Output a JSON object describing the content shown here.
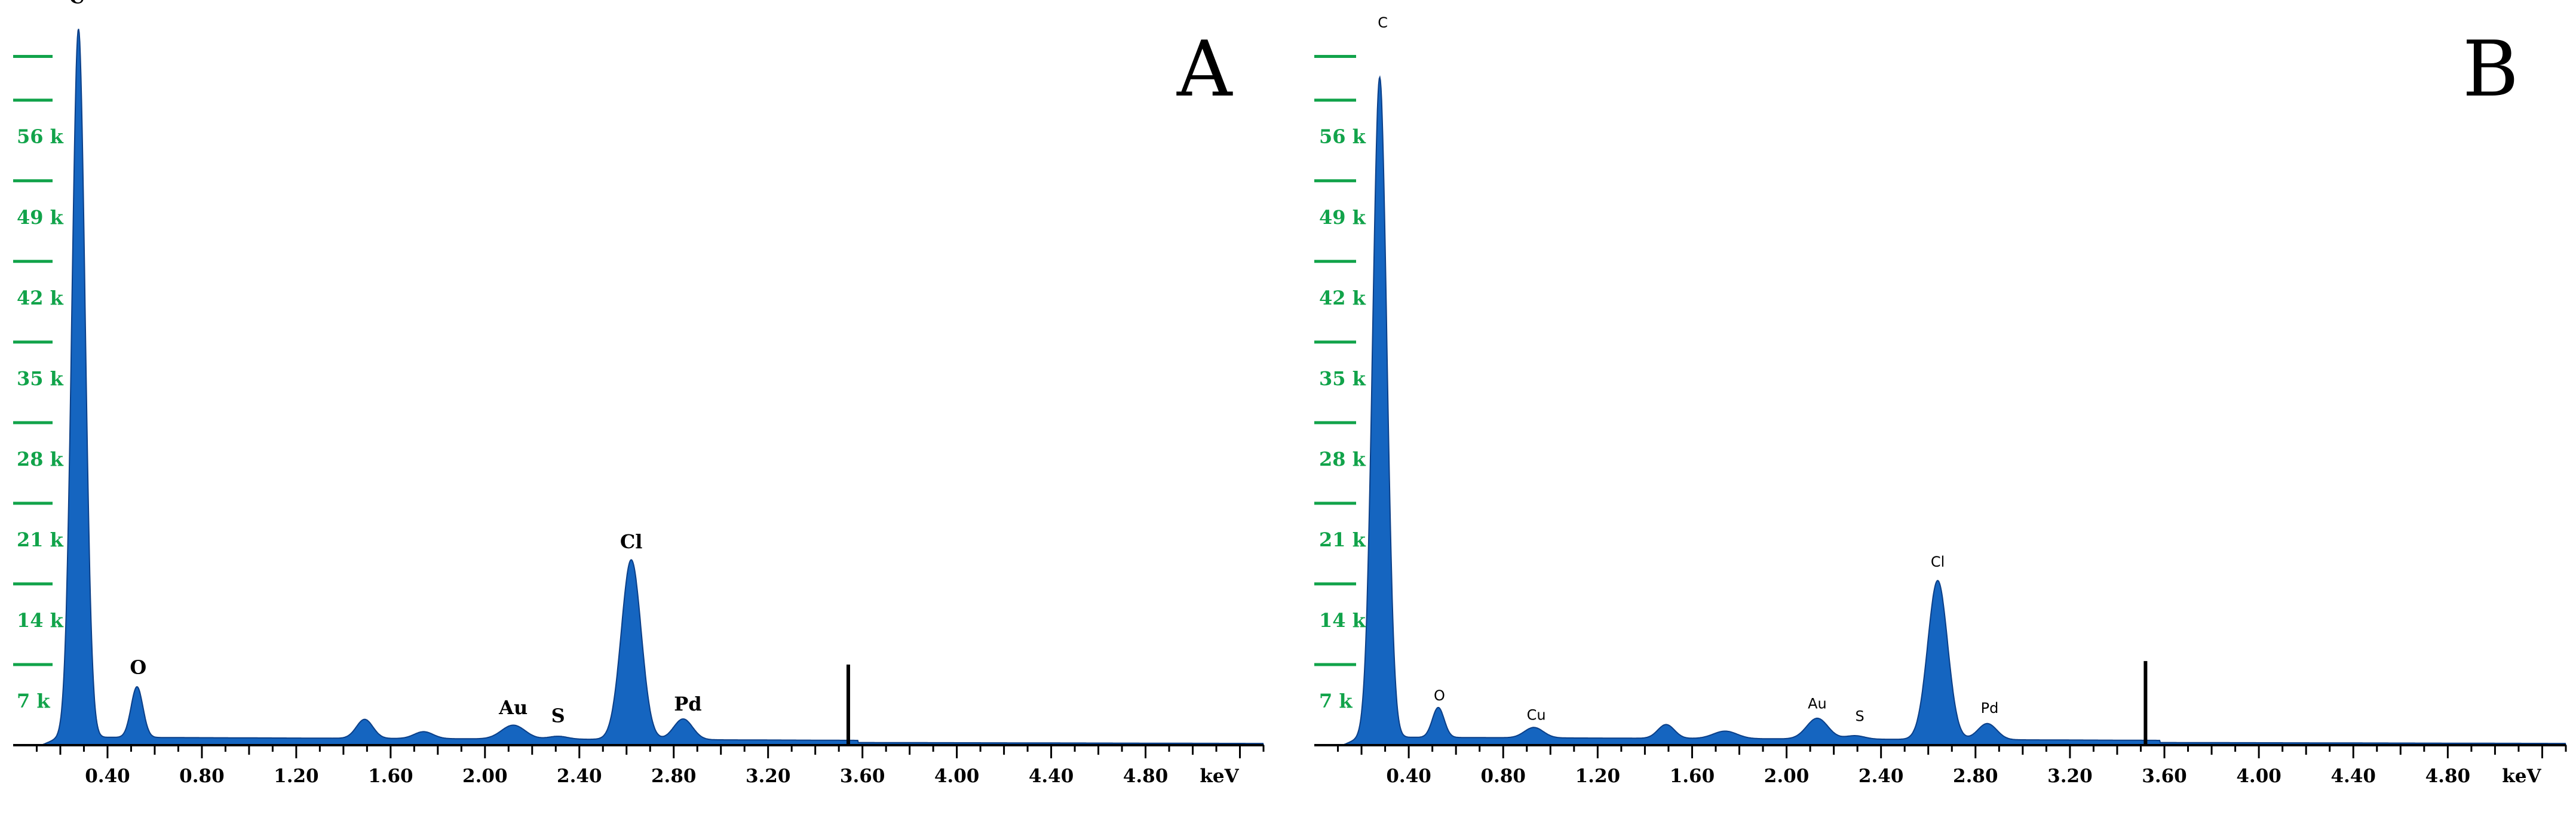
{
  "chart_data": [
    {
      "type": "area",
      "panel_label": "A",
      "xlabel": "keV",
      "xlim": [
        0.0,
        5.3
      ],
      "ylim": [
        0,
        62000
      ],
      "x_ticks": [
        0.4,
        0.8,
        1.2,
        1.6,
        2.0,
        2.4,
        2.8,
        3.2,
        3.6,
        4.0,
        4.4,
        4.8
      ],
      "x_tick_labels": [
        "0.40",
        "0.80",
        "1.20",
        "1.60",
        "2.00",
        "2.40",
        "2.80",
        "3.20",
        "3.60",
        "4.00",
        "4.40",
        "4.80"
      ],
      "y_ticks": [
        7000,
        14000,
        21000,
        28000,
        35000,
        42000,
        49000,
        56000
      ],
      "y_tick_labels": [
        "7 k",
        "14 k",
        "21 k",
        "28 k",
        "35 k",
        "42 k",
        "49 k",
        "56 k"
      ],
      "baseline": 700,
      "peaks": [
        {
          "element": "C",
          "energy": 0.277,
          "counts": 61500,
          "sigma": 0.028
        },
        {
          "element": "O",
          "energy": 0.525,
          "counts": 4400,
          "sigma": 0.025
        },
        {
          "element": "",
          "energy": 1.49,
          "counts": 1650,
          "sigma": 0.035
        },
        {
          "element": "",
          "energy": 1.74,
          "counts": 600,
          "sigma": 0.04
        },
        {
          "element": "Au",
          "energy": 2.12,
          "counts": 1200,
          "sigma": 0.05
        },
        {
          "element": "S",
          "energy": 2.31,
          "counts": 250,
          "sigma": 0.04
        },
        {
          "element": "Cl",
          "energy": 2.62,
          "counts": 15600,
          "sigma": 0.042
        },
        {
          "element": "Pd",
          "energy": 2.84,
          "counts": 1800,
          "sigma": 0.04
        }
      ],
      "marker": {
        "energy": 3.54,
        "counts": 7000
      },
      "peak_labels": [
        {
          "text": "C",
          "energy": 0.27,
          "counts": 64400
        },
        {
          "text": "O",
          "energy": 0.53,
          "counts": 6200
        },
        {
          "text": "Au",
          "energy": 2.12,
          "counts": 2700
        },
        {
          "text": "S",
          "energy": 2.31,
          "counts": 2000
        },
        {
          "text": "Cl",
          "energy": 2.62,
          "counts": 17100
        },
        {
          "text": "Pd",
          "energy": 2.86,
          "counts": 3000
        }
      ]
    },
    {
      "type": "area",
      "panel_label": "B",
      "xlabel": "keV",
      "xlim": [
        0.0,
        5.3
      ],
      "ylim": [
        0,
        62000
      ],
      "x_ticks": [
        0.4,
        0.8,
        1.2,
        1.6,
        2.0,
        2.4,
        2.8,
        3.2,
        3.6,
        4.0,
        4.4,
        4.8
      ],
      "x_tick_labels": [
        "0.40",
        "0.80",
        "1.20",
        "1.60",
        "2.00",
        "2.40",
        "2.80",
        "3.20",
        "3.60",
        "4.00",
        "4.40",
        "4.80"
      ],
      "y_ticks": [
        7000,
        14000,
        21000,
        28000,
        35000,
        42000,
        49000,
        56000
      ],
      "y_tick_labels": [
        "7 k",
        "14 k",
        "21 k",
        "28 k",
        "35 k",
        "42 k",
        "49 k",
        "56 k"
      ],
      "baseline": 700,
      "peaks": [
        {
          "element": "C",
          "energy": 0.277,
          "counts": 57300,
          "sigma": 0.03
        },
        {
          "element": "O",
          "energy": 0.525,
          "counts": 2600,
          "sigma": 0.025
        },
        {
          "element": "Cu",
          "energy": 0.93,
          "counts": 900,
          "sigma": 0.04
        },
        {
          "element": "",
          "energy": 1.49,
          "counts": 1200,
          "sigma": 0.035
        },
        {
          "element": "",
          "energy": 1.74,
          "counts": 650,
          "sigma": 0.05
        },
        {
          "element": "Au",
          "energy": 2.13,
          "counts": 1800,
          "sigma": 0.045
        },
        {
          "element": "S",
          "energy": 2.29,
          "counts": 300,
          "sigma": 0.04
        },
        {
          "element": "Cl",
          "energy": 2.64,
          "counts": 13800,
          "sigma": 0.042
        },
        {
          "element": "Pd",
          "energy": 2.85,
          "counts": 1400,
          "sigma": 0.04
        }
      ],
      "marker": {
        "energy": 3.52,
        "counts": 7300
      },
      "peak_labels": [
        {
          "text": "C",
          "energy": 0.29,
          "counts": 62300
        },
        {
          "text": "O",
          "energy": 0.53,
          "counts": 3900
        },
        {
          "text": "Cu",
          "energy": 0.94,
          "counts": 2200
        },
        {
          "text": "Au",
          "energy": 2.13,
          "counts": 3200
        },
        {
          "text": "S",
          "energy": 2.31,
          "counts": 2100
        },
        {
          "text": "Cl",
          "energy": 2.64,
          "counts": 15500
        },
        {
          "text": "Pd",
          "energy": 2.86,
          "counts": 2800
        }
      ]
    }
  ],
  "colors": {
    "fill": "#1565c0",
    "stroke": "#0b3f88",
    "ytick": "#11a34a",
    "axis": "#000000"
  }
}
